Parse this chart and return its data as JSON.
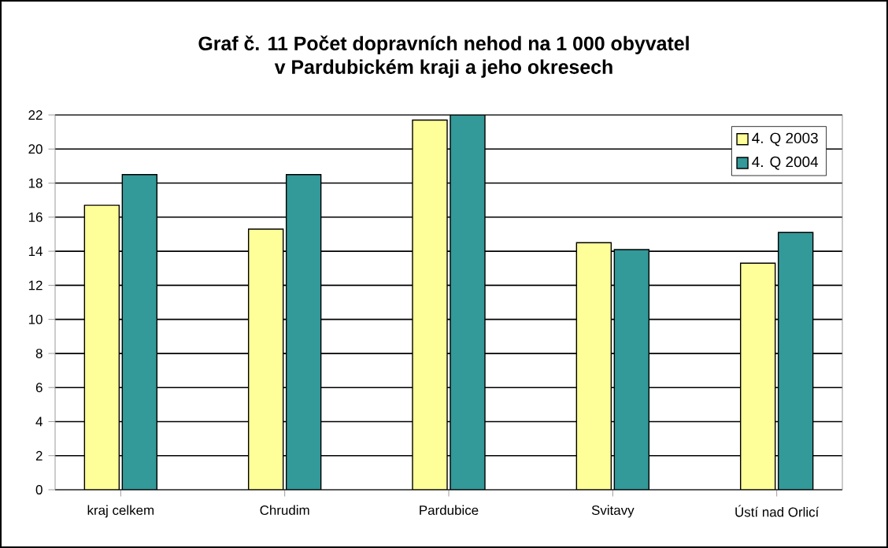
{
  "chart_data": {
    "type": "bar",
    "title": "Graf č. 11  Počet dopravních nehod na 1 000 obyvatel\nv Pardubickém kraji a jeho okresech",
    "categories": [
      "kraj celkem",
      "Chrudim",
      "Pardubice",
      "Svitavy",
      "Ústí nad Orlicí"
    ],
    "series": [
      {
        "name": "4. Q 2003",
        "color": "#ffff99",
        "values": [
          16.7,
          15.3,
          21.7,
          14.5,
          13.3
        ]
      },
      {
        "name": "4. Q 2004",
        "color": "#339999",
        "values": [
          18.5,
          18.5,
          22.0,
          14.1,
          15.1
        ]
      }
    ],
    "ylim": [
      0,
      22
    ],
    "yticks": [
      0,
      2,
      4,
      6,
      8,
      10,
      12,
      14,
      16,
      18,
      20,
      22
    ],
    "grid": "y",
    "legend": "top right"
  }
}
